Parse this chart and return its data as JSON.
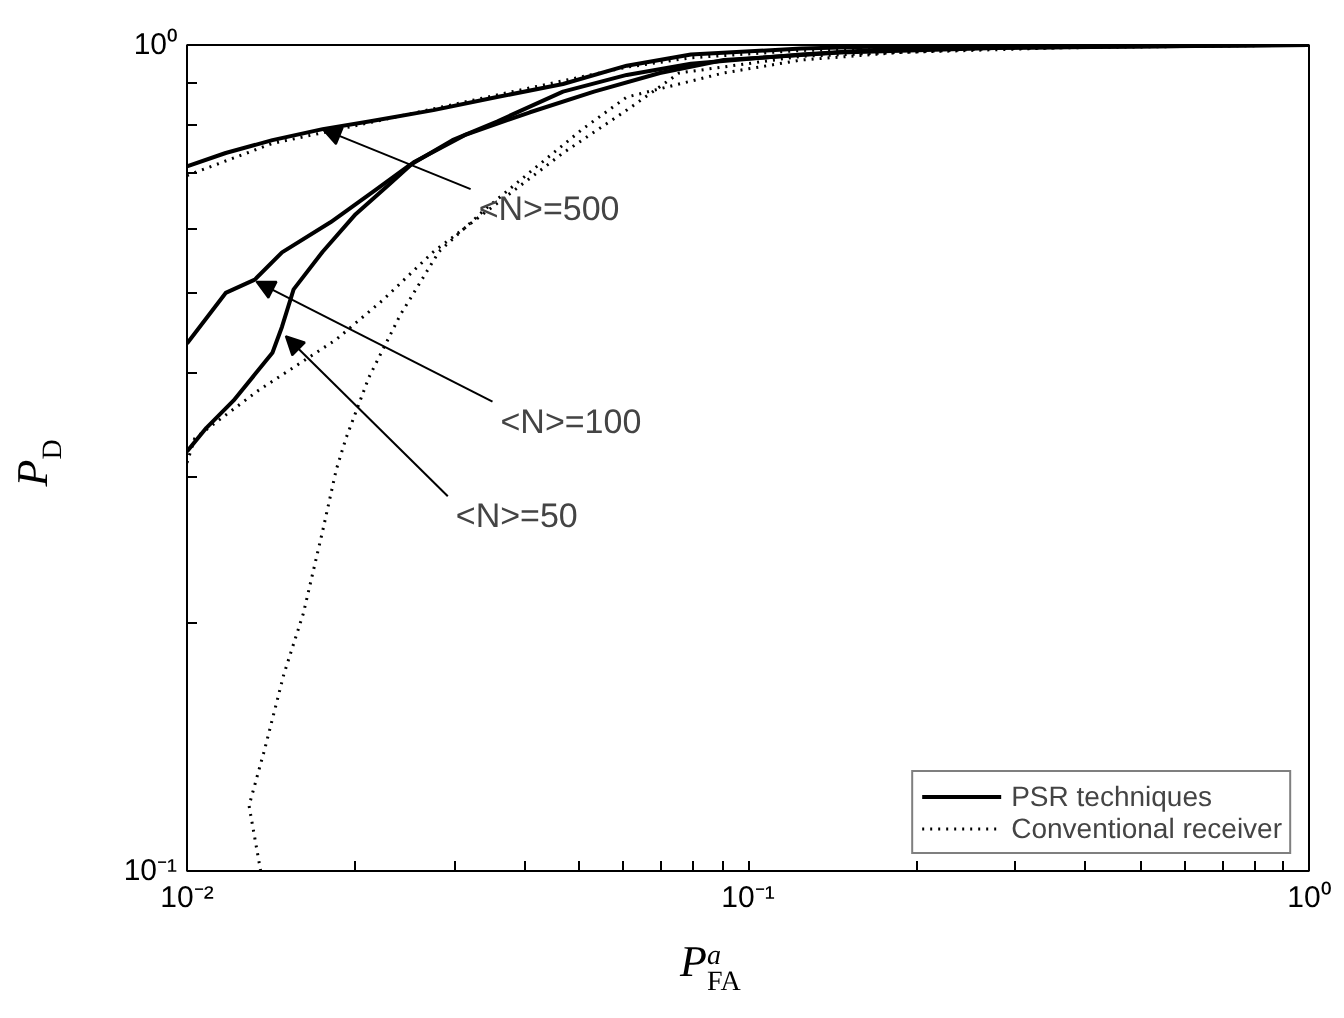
{
  "chart_data": {
    "type": "line",
    "xlabel": "P$^{a}$$_{FA}$",
    "ylabel": "P$_{D}$",
    "log": "xy",
    "grid": false,
    "legend": "bottom right",
    "xlim": [
      0.01,
      1
    ],
    "ylim": [
      0.1,
      1
    ],
    "xticks": [
      {
        "value": 0.01,
        "label": "10⁻²"
      },
      {
        "value": 0.02,
        "label": null
      },
      {
        "value": 0.03,
        "label": null
      },
      {
        "value": 0.04,
        "label": null
      },
      {
        "value": 0.05,
        "label": null
      },
      {
        "value": 0.06,
        "label": null
      },
      {
        "value": 0.07,
        "label": null
      },
      {
        "value": 0.08,
        "label": null
      },
      {
        "value": 0.09,
        "label": null
      },
      {
        "value": 0.1,
        "label": "10⁻¹"
      },
      {
        "value": 0.2,
        "label": null
      },
      {
        "value": 0.3,
        "label": null
      },
      {
        "value": 0.4,
        "label": null
      },
      {
        "value": 0.5,
        "label": null
      },
      {
        "value": 0.6,
        "label": null
      },
      {
        "value": 0.7,
        "label": null
      },
      {
        "value": 0.8,
        "label": null
      },
      {
        "value": 0.9,
        "label": null
      },
      {
        "value": 1,
        "label": "10⁰"
      }
    ],
    "yticks": [
      {
        "value": 0.1,
        "label": "10⁻¹"
      },
      {
        "value": 0.2,
        "label": null
      },
      {
        "value": 0.3,
        "label": null
      },
      {
        "value": 0.4,
        "label": null
      },
      {
        "value": 0.5,
        "label": null
      },
      {
        "value": 0.6,
        "label": null
      },
      {
        "value": 0.7,
        "label": null
      },
      {
        "value": 0.8,
        "label": null
      },
      {
        "value": 0.9,
        "label": null
      },
      {
        "value": 1,
        "label": "10⁰"
      }
    ],
    "series": [
      {
        "name": "PSR techniques",
        "color": "#000000",
        "line_style": "solid",
        "x": [
          0.01,
          0.01172,
          0.0142,
          0.01745,
          0.0211,
          0.0275,
          0.0357,
          0.0468,
          0.0608,
          0.0791,
          0.1245,
          0.185,
          0.41,
          1
        ],
        "values": [
          0.713,
          0.74,
          0.767,
          0.791,
          0.808,
          0.834,
          0.865,
          0.897,
          0.944,
          0.974,
          0.99,
          0.997,
          0.999,
          1
        ]
      },
      {
        "color": "#000000",
        "line_style": "solid",
        "x": [
          0.01,
          0.01172,
          0.01321,
          0.01477,
          0.01802,
          0.02163,
          0.02476,
          0.02973,
          0.0357,
          0.0468,
          0.0608,
          0.0791,
          0.1245,
          0.185,
          0.41,
          1
        ],
        "values": [
          0.435,
          0.501,
          0.52,
          0.561,
          0.61,
          0.667,
          0.713,
          0.767,
          0.808,
          0.878,
          0.92,
          0.949,
          0.974,
          0.99,
          0.995,
          1
        ]
      },
      {
        "color": "#000000",
        "line_style": "solid",
        "x": [
          0.01,
          0.01083,
          0.0121,
          0.0142,
          0.01477,
          0.01549,
          0.01745,
          0.01998,
          0.02287,
          0.02536,
          0.03143,
          0.04087,
          0.05315,
          0.06966,
          0.0905,
          0.1459,
          0.2757,
          1
        ],
        "values": [
          0.322,
          0.344,
          0.371,
          0.424,
          0.456,
          0.506,
          0.562,
          0.624,
          0.677,
          0.721,
          0.779,
          0.829,
          0.878,
          0.925,
          0.959,
          0.979,
          0.992,
          1
        ]
      },
      {
        "name": "Conventional receiver",
        "color": "#000000",
        "line_style": "dotted",
        "x": [
          0.01,
          0.0142,
          0.0211,
          0.0357,
          0.0468,
          0.0608,
          0.0791,
          0.1245,
          0.41,
          1
        ],
        "values": [
          0.695,
          0.76,
          0.805,
          0.87,
          0.905,
          0.94,
          0.965,
          0.985,
          0.998,
          1
        ]
      },
      {
        "color": "#000000",
        "line_style": "dotted",
        "x": [
          0.01,
          0.01032,
          0.01342,
          0.01845,
          0.02233,
          0.0275,
          0.0357,
          0.0468,
          0.0608,
          0.0754,
          0.1245,
          0.2757,
          1
        ],
        "values": [
          0.312,
          0.334,
          0.382,
          0.44,
          0.491,
          0.562,
          0.643,
          0.74,
          0.834,
          0.925,
          0.969,
          0.99,
          1
        ]
      },
      {
        "color": "#000000",
        "line_style": "dotted",
        "x": [
          0.01353,
          0.0129,
          0.01374,
          0.01488,
          0.01612,
          0.01745,
          0.01845,
          0.0192,
          0.0211,
          0.02399,
          0.02812,
          0.03404,
          0.0409,
          0.0507,
          0.0608,
          0.0905,
          0.1245,
          0.185,
          0.41,
          1
        ],
        "values": [
          0.1,
          0.12,
          0.14,
          0.173,
          0.205,
          0.258,
          0.306,
          0.334,
          0.396,
          0.471,
          0.562,
          0.633,
          0.702,
          0.791,
          0.865,
          0.925,
          0.959,
          0.979,
          0.995,
          1
        ]
      }
    ],
    "annotations": [
      {
        "text": "<N>=500",
        "x": 0.01745,
        "y": 0.791
      },
      {
        "text": "<N>=100",
        "x": 0.0133,
        "y": 0.517
      },
      {
        "text": "<N>=50",
        "x": 0.015,
        "y": 0.444
      }
    ]
  }
}
